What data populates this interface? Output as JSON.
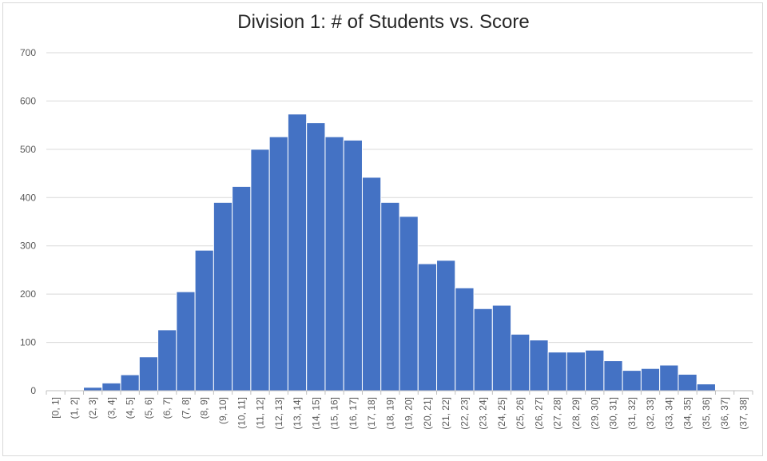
{
  "chart_data": {
    "type": "bar",
    "title": "Division 1: # of Students vs. Score",
    "xlabel": "",
    "ylabel": "",
    "ylim": [
      0,
      700
    ],
    "yticks": [
      0,
      100,
      200,
      300,
      400,
      500,
      600,
      700
    ],
    "grid": true,
    "legend": "none",
    "bar_color": "#4472c4",
    "categories": [
      "[0, 1]",
      "(1, 2]",
      "(2, 3]",
      "(3, 4]",
      "(4, 5]",
      "(5, 6]",
      "(6, 7]",
      "(7, 8]",
      "(8, 9]",
      "(9, 10]",
      "(10, 11]",
      "(11, 12]",
      "(12, 13]",
      "(13, 14]",
      "(14, 15]",
      "(15, 16]",
      "(16, 17]",
      "(17, 18]",
      "(18, 19]",
      "(19, 20]",
      "(20, 21]",
      "(21, 22]",
      "(22, 23]",
      "(23, 24]",
      "(24, 25]",
      "(25, 26]",
      "(26, 27]",
      "(27, 28]",
      "(28, 29]",
      "(29, 30]",
      "(30, 31]",
      "(31, 32]",
      "(32, 33]",
      "(33, 34]",
      "(34, 35]",
      "(35, 36]",
      "(36, 37]",
      "(37, 38]"
    ],
    "values": [
      0,
      0,
      7,
      16,
      33,
      70,
      126,
      205,
      291,
      390,
      423,
      500,
      526,
      573,
      555,
      526,
      519,
      442,
      390,
      361,
      263,
      270,
      213,
      170,
      177,
      117,
      105,
      80,
      80,
      84,
      62,
      42,
      46,
      53,
      34,
      14,
      0,
      0
    ]
  }
}
